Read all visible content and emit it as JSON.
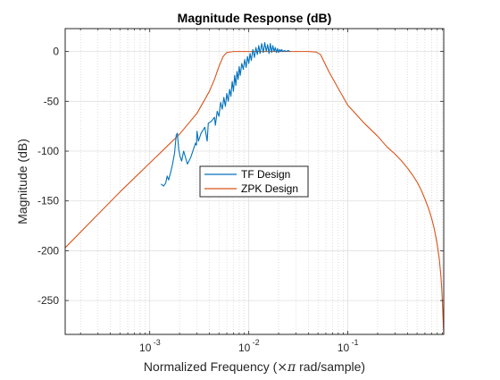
{
  "chart_data": {
    "type": "line",
    "title": "Magnitude Response (dB)",
    "xlabel_prefix": "Normalized Frequency  (",
    "xlabel_symbol": "×π",
    "xlabel_suffix": " rad/sample)",
    "ylabel": "Magnitude (dB)",
    "xscale": "log",
    "xlim": [
      0.00014,
      0.93
    ],
    "ylim": [
      -284,
      23
    ],
    "yticks": [
      0,
      -50,
      -100,
      -150,
      -200,
      -250
    ],
    "ytick_labels": [
      "0",
      "-50",
      "-100",
      "-150",
      "-200",
      "-250"
    ],
    "xticks": [
      0.001,
      0.01,
      0.1
    ],
    "xtick_bases": [
      "10",
      "10",
      "10"
    ],
    "xtick_exps": [
      "-3",
      "-2",
      "-1"
    ],
    "grid": true,
    "legend_position": "center",
    "colors": {
      "tf": "#0072bd",
      "zpk": "#d95319",
      "axis": "#262626",
      "grid": "#dfdfdf"
    },
    "series": [
      {
        "name": "TF Design",
        "color": "#0072bd",
        "x": [
          0.0013,
          0.00138,
          0.00145,
          0.0015,
          0.00155,
          0.00162,
          0.0017,
          0.00178,
          0.00185,
          0.0019,
          0.00196,
          0.00202,
          0.0021,
          0.0022,
          0.0024,
          0.0026,
          0.0029,
          0.00296,
          0.003,
          0.0031,
          0.0033,
          0.0036,
          0.0038,
          0.0039,
          0.0042,
          0.0045,
          0.0046,
          0.0048,
          0.005,
          0.0052,
          0.0054,
          0.0056,
          0.0058,
          0.006,
          0.0062,
          0.0064,
          0.0066,
          0.0068,
          0.007,
          0.0072,
          0.0074,
          0.0076,
          0.0078,
          0.008,
          0.0082,
          0.0085,
          0.0088,
          0.0091,
          0.0094,
          0.0097,
          0.01,
          0.0103,
          0.0106,
          0.011,
          0.0114,
          0.0118,
          0.0122,
          0.0126,
          0.013,
          0.0135,
          0.014,
          0.0145,
          0.015,
          0.0155,
          0.016,
          0.0165,
          0.017,
          0.0175,
          0.018,
          0.0185,
          0.019,
          0.0195,
          0.02,
          0.0205,
          0.021,
          0.0215,
          0.022,
          0.023,
          0.024,
          0.025,
          0.026
        ],
        "y": [
          -133,
          -135,
          -132,
          -125,
          -129,
          -122,
          -113,
          -102,
          -84,
          -82,
          -98,
          -105,
          -110,
          -100,
          -113,
          -106,
          -92,
          -94,
          -80,
          -90,
          -82,
          -76,
          -90,
          -72,
          -70,
          -66,
          -74,
          -60,
          -65,
          -51,
          -58,
          -46,
          -55,
          -42,
          -50,
          -38,
          -45,
          -30,
          -40,
          -24,
          -34,
          -20,
          -28,
          -15,
          -24,
          -12,
          -18,
          -8,
          -16,
          -5,
          -12,
          -2,
          -9,
          2,
          -6,
          4,
          -3,
          6,
          -2,
          8,
          -1,
          9,
          0,
          7,
          -2,
          8,
          -1,
          6,
          0,
          4,
          -1,
          3,
          -1,
          2,
          0,
          2,
          0,
          1,
          0,
          1,
          0
        ]
      },
      {
        "name": "ZPK Design",
        "color": "#d95319",
        "x": [
          0.00014,
          0.0005,
          0.001,
          0.002,
          0.003,
          0.004,
          0.0045,
          0.005,
          0.0055,
          0.006,
          0.007,
          0.01,
          0.02,
          0.03,
          0.04,
          0.048,
          0.053,
          0.058,
          0.065,
          0.08,
          0.1,
          0.15,
          0.2,
          0.25,
          0.3,
          0.35,
          0.4,
          0.45,
          0.5,
          0.55,
          0.6,
          0.65,
          0.7,
          0.75,
          0.8,
          0.84,
          0.87,
          0.89,
          0.91,
          0.93
        ],
        "y": [
          -197,
          -141,
          -112,
          -83,
          -62,
          -40,
          -28,
          -15,
          -5,
          -1,
          0,
          0,
          0,
          0,
          0,
          -0.5,
          -3,
          -11,
          -21,
          -37,
          -54,
          -73,
          -85,
          -96,
          -103,
          -110,
          -117,
          -124,
          -131,
          -139,
          -148,
          -157,
          -167,
          -179,
          -194,
          -209,
          -225,
          -240,
          -260,
          -284
        ]
      }
    ]
  }
}
